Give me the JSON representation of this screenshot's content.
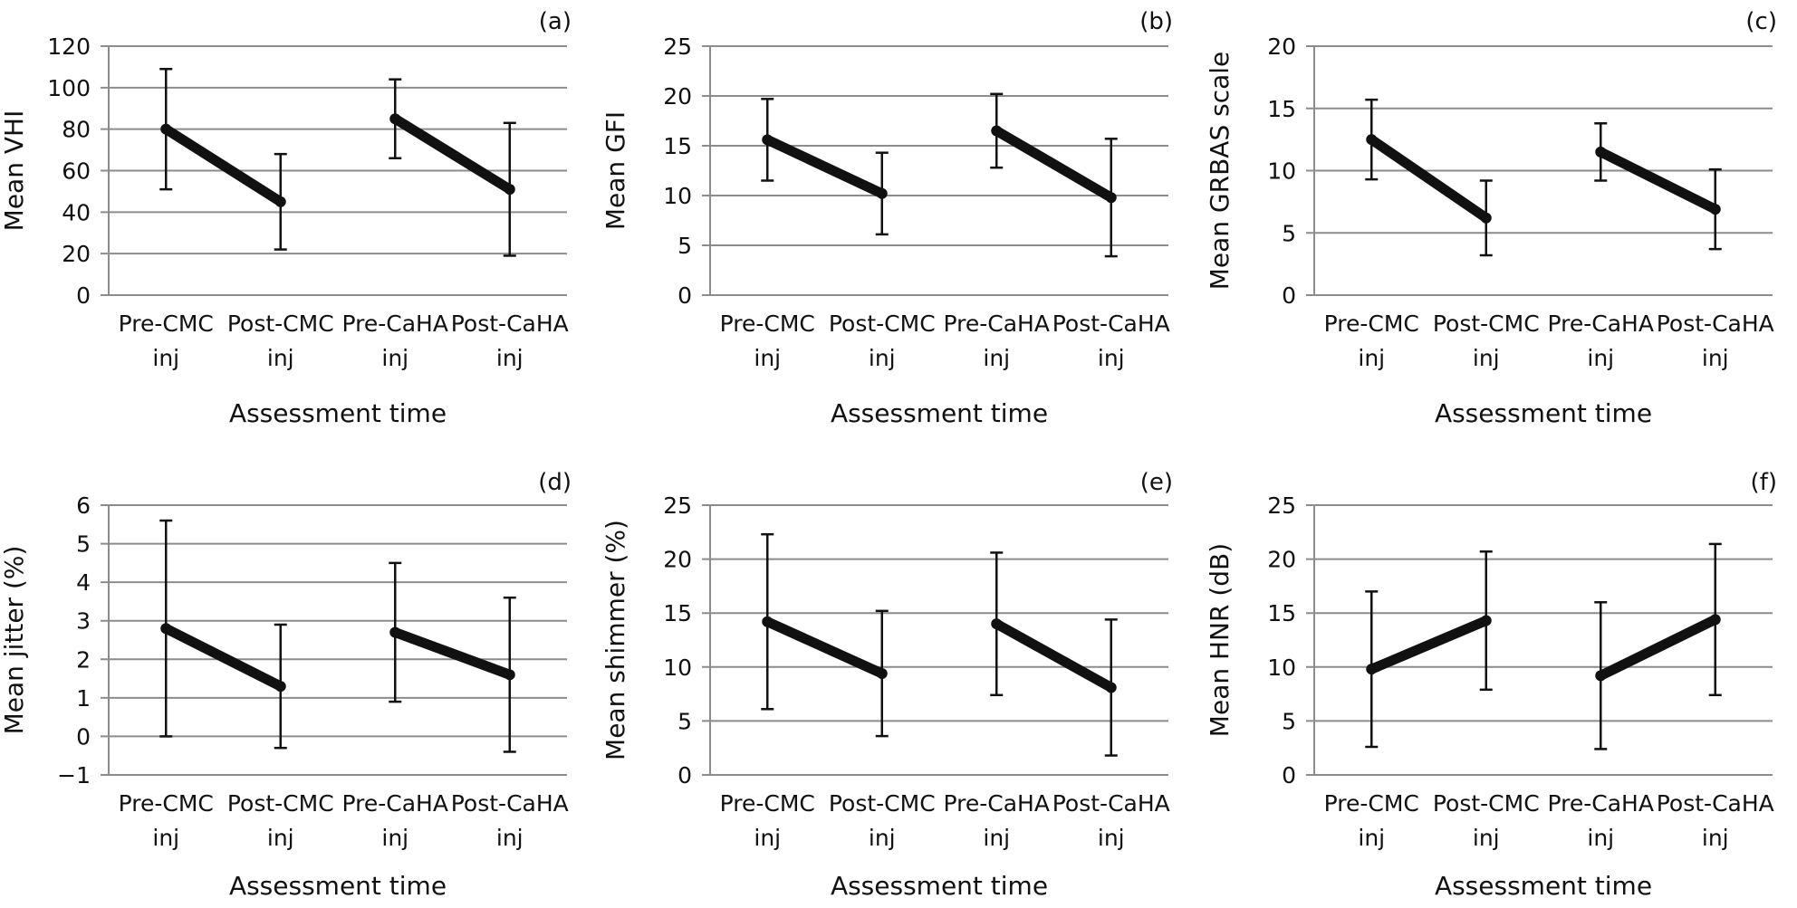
{
  "chart_data": [
    {
      "type": "line",
      "panel_label": "(a)",
      "ylabel": "Mean VHI",
      "xlabel": "Assessment time",
      "categories": [
        [
          "Pre-CMC",
          "inj"
        ],
        [
          "Post-CMC",
          "inj"
        ],
        [
          "Pre-CaHA",
          "inj"
        ],
        [
          "Post-CaHA",
          "inj"
        ]
      ],
      "ylim": [
        0,
        120
      ],
      "yticks": [
        0,
        20,
        40,
        60,
        80,
        100,
        120
      ],
      "grid": true,
      "values": [
        80,
        45,
        85,
        51
      ],
      "err_low": [
        51,
        22,
        66,
        19
      ],
      "err_high": [
        109,
        68,
        104,
        83
      ]
    },
    {
      "type": "line",
      "panel_label": "(b)",
      "ylabel": "Mean GFI",
      "xlabel": "Assessment time",
      "categories": [
        [
          "Pre-CMC",
          "inj"
        ],
        [
          "Post-CMC",
          "inj"
        ],
        [
          "Pre-CaHA",
          "inj"
        ],
        [
          "Post-CaHA",
          "inj"
        ]
      ],
      "ylim": [
        0,
        25
      ],
      "yticks": [
        0,
        5,
        10,
        15,
        20,
        25
      ],
      "grid": true,
      "values": [
        15.6,
        10.2,
        16.5,
        9.8
      ],
      "err_low": [
        11.5,
        6.1,
        12.8,
        3.9
      ],
      "err_high": [
        19.7,
        14.3,
        20.2,
        15.7
      ]
    },
    {
      "type": "line",
      "panel_label": "(c)",
      "ylabel": "Mean GRBAS scale",
      "xlabel": "Assessment time",
      "categories": [
        [
          "Pre-CMC",
          "inj"
        ],
        [
          "Post-CMC",
          "inj"
        ],
        [
          "Pre-CaHA",
          "inj"
        ],
        [
          "Post-CaHA",
          "inj"
        ]
      ],
      "ylim": [
        0,
        20
      ],
      "yticks": [
        0,
        5,
        10,
        15,
        20
      ],
      "grid": true,
      "values": [
        12.5,
        6.2,
        11.5,
        6.9
      ],
      "err_low": [
        9.3,
        3.2,
        9.2,
        3.7
      ],
      "err_high": [
        15.7,
        9.2,
        13.8,
        10.1
      ]
    },
    {
      "type": "line",
      "panel_label": "(d)",
      "ylabel": "Mean jitter (%)",
      "xlabel": "Assessment time",
      "categories": [
        [
          "Pre-CMC",
          "inj"
        ],
        [
          "Post-CMC",
          "inj"
        ],
        [
          "Pre-CaHA",
          "inj"
        ],
        [
          "Post-CaHA",
          "inj"
        ]
      ],
      "ylim": [
        -1,
        6
      ],
      "yticks": [
        -1,
        0,
        1,
        2,
        3,
        4,
        5,
        6
      ],
      "ytick_labels": [
        "−1",
        "0",
        "1",
        "2",
        "3",
        "4",
        "5",
        "6"
      ],
      "grid": true,
      "values": [
        2.8,
        1.3,
        2.7,
        1.6
      ],
      "err_low": [
        0,
        -0.3,
        0.9,
        -0.4
      ],
      "err_high": [
        5.6,
        2.9,
        4.5,
        3.6
      ]
    },
    {
      "type": "line",
      "panel_label": "(e)",
      "ylabel": "Mean shimmer (%)",
      "xlabel": "Assessment time",
      "categories": [
        [
          "Pre-CMC",
          "inj"
        ],
        [
          "Post-CMC",
          "inj"
        ],
        [
          "Pre-CaHA",
          "inj"
        ],
        [
          "Post-CaHA",
          "inj"
        ]
      ],
      "ylim": [
        0,
        25
      ],
      "yticks": [
        0,
        5,
        10,
        15,
        20,
        25
      ],
      "grid": true,
      "values": [
        14.2,
        9.4,
        14.0,
        8.1
      ],
      "err_low": [
        6.1,
        3.6,
        7.4,
        1.8
      ],
      "err_high": [
        22.3,
        15.2,
        20.6,
        14.4
      ]
    },
    {
      "type": "line",
      "panel_label": "(f)",
      "ylabel": "Mean HNR (dB)",
      "xlabel": "Assessment time",
      "categories": [
        [
          "Pre-CMC",
          "inj"
        ],
        [
          "Post-CMC",
          "inj"
        ],
        [
          "Pre-CaHA",
          "inj"
        ],
        [
          "Post-CaHA",
          "inj"
        ]
      ],
      "ylim": [
        0,
        25
      ],
      "yticks": [
        0,
        5,
        10,
        15,
        20,
        25
      ],
      "grid": true,
      "values": [
        9.8,
        14.3,
        9.2,
        14.4
      ],
      "err_low": [
        2.6,
        7.9,
        2.4,
        7.4
      ],
      "err_high": [
        17.0,
        20.7,
        16.0,
        21.4
      ]
    }
  ],
  "colors": {
    "line": "#111111",
    "grid": "#8c8c8c",
    "text": "#111111"
  }
}
